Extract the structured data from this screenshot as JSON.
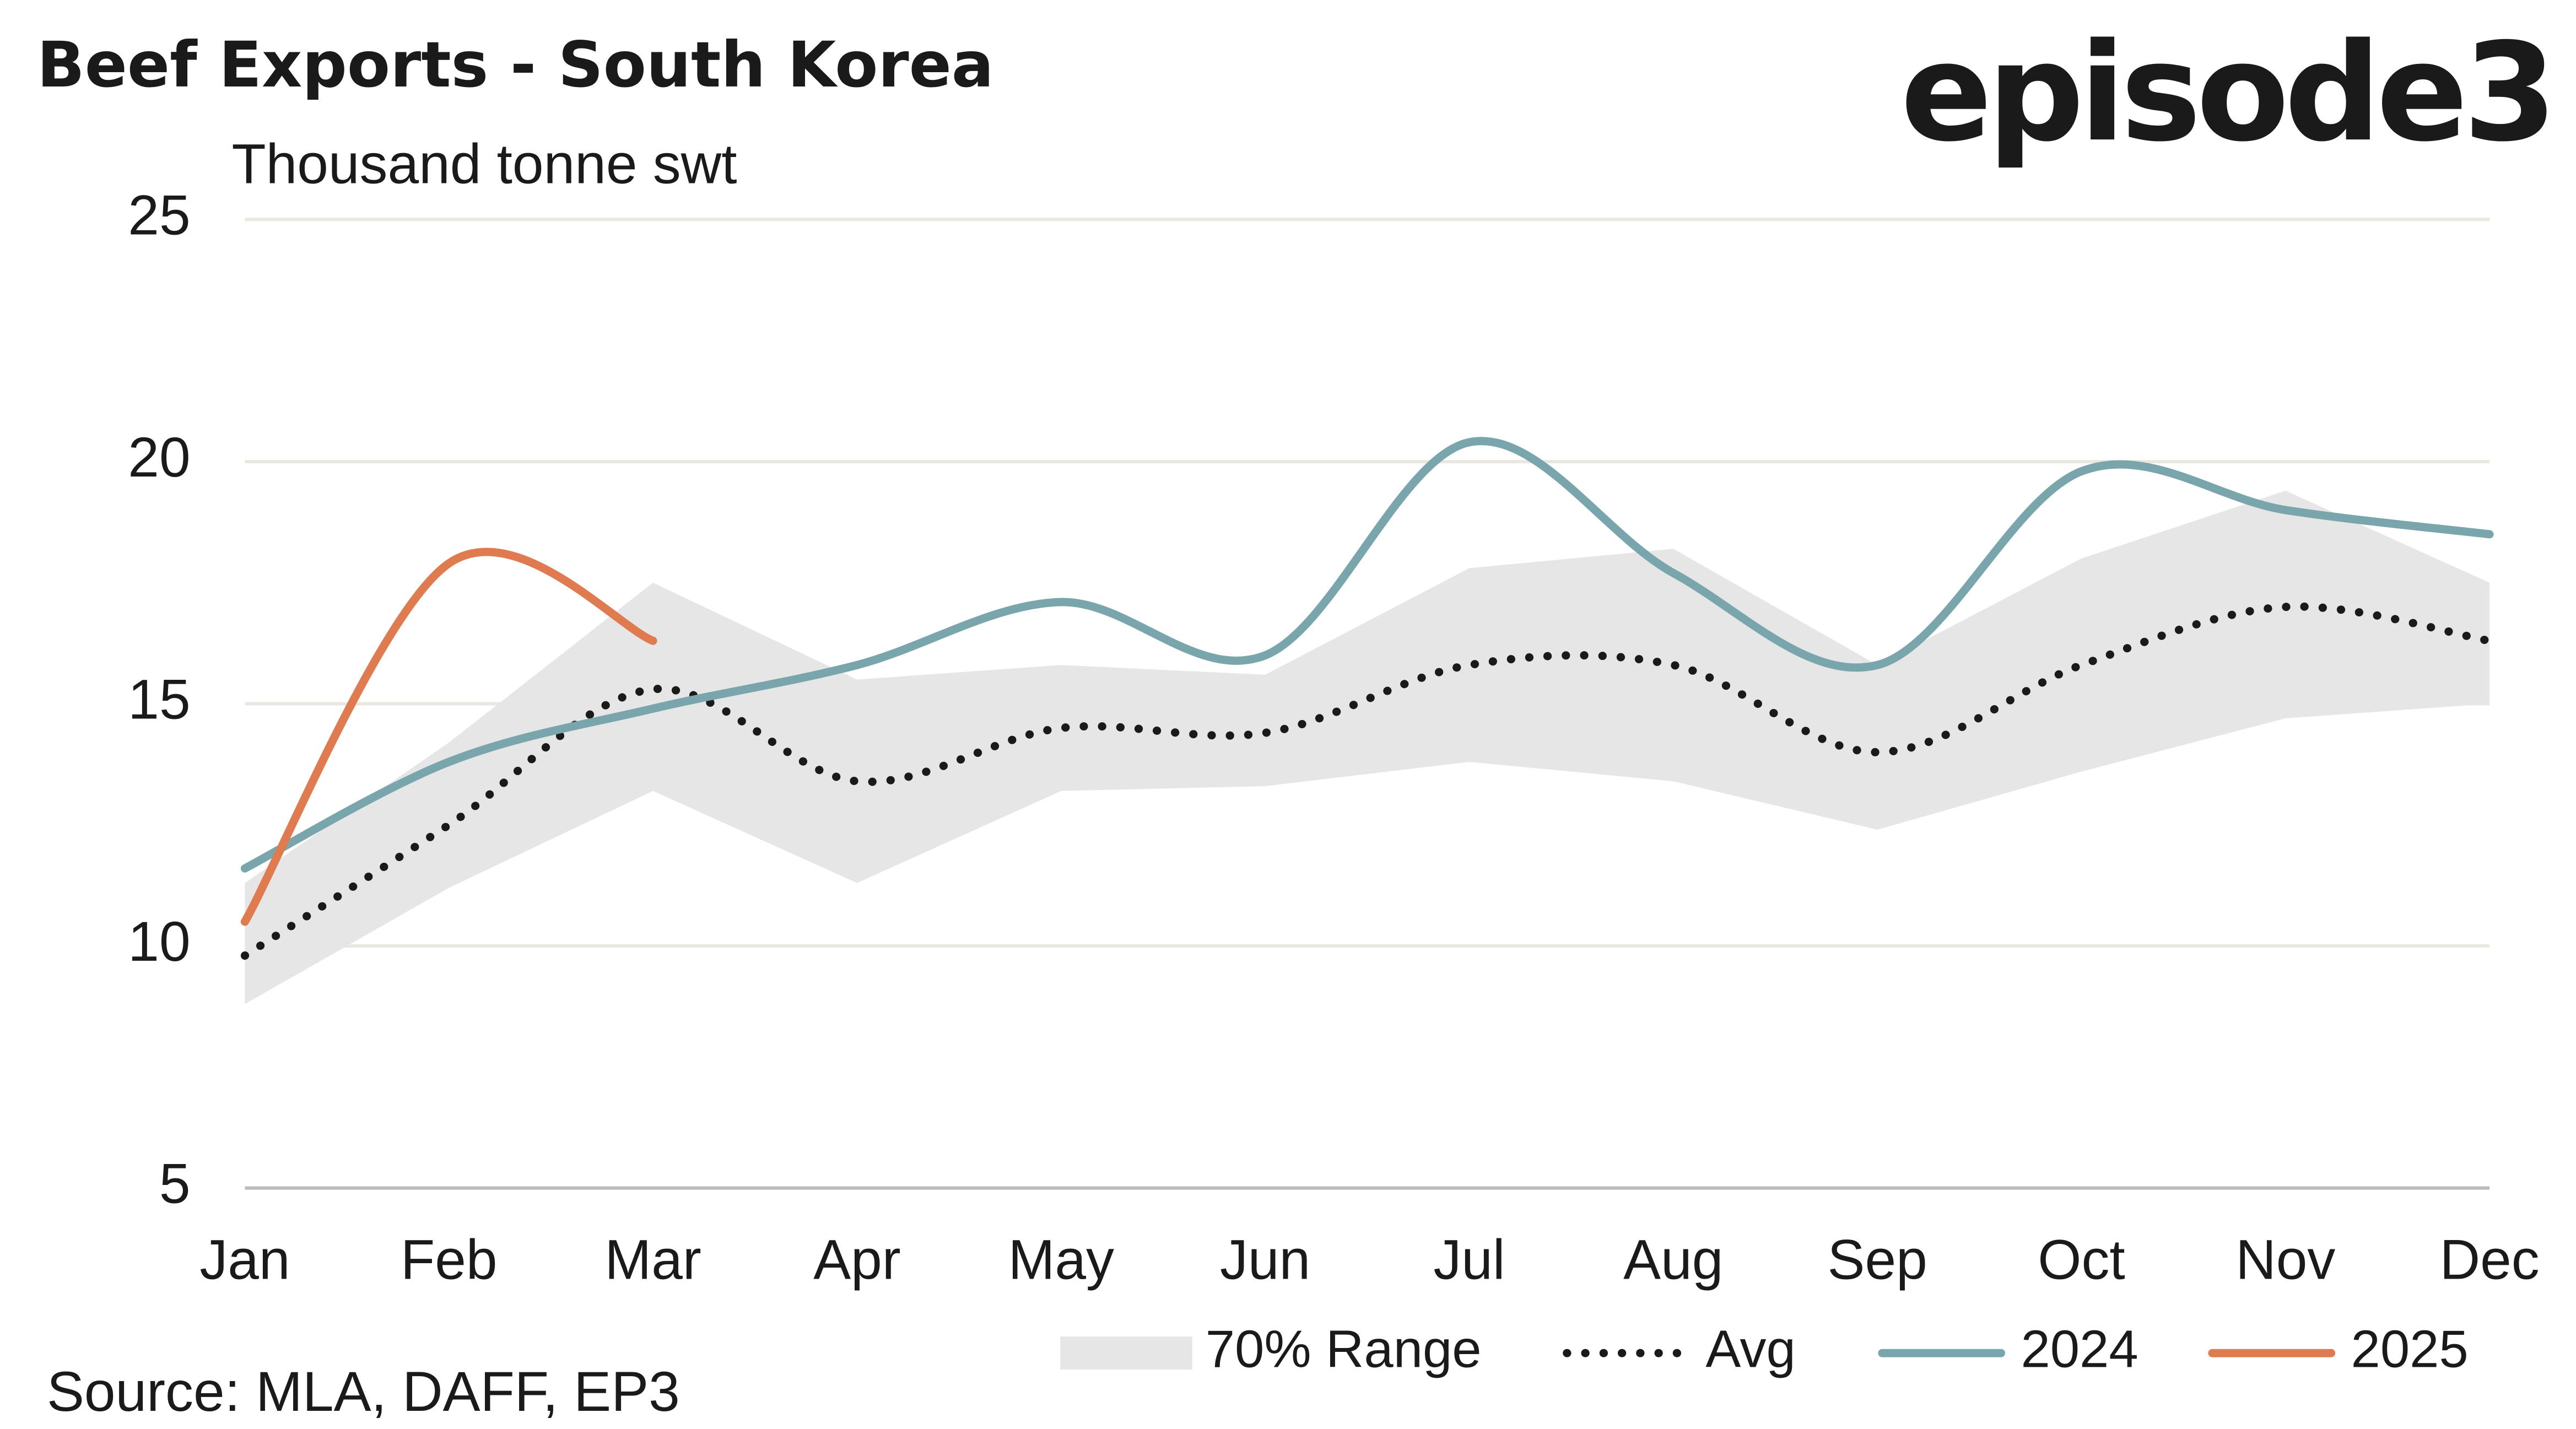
{
  "chart_data": {
    "type": "line",
    "title": "Beef Exports - South Korea",
    "subtitle": "Thousand tonne swt",
    "logo": "episode3",
    "source": "Source: MLA, DAFF, EP3",
    "categories": [
      "Jan",
      "Feb",
      "Mar",
      "Apr",
      "May",
      "Jun",
      "Jul",
      "Aug",
      "Sep",
      "Oct",
      "Nov",
      "Dec"
    ],
    "ylim": [
      5,
      25
    ],
    "yticks": [
      5,
      10,
      15,
      20,
      25
    ],
    "grid": true,
    "legend": "bottom",
    "series": [
      {
        "name": "70% Range",
        "type": "band",
        "color": "#e6e6e6",
        "lower": [
          8.8,
          11.2,
          13.2,
          11.3,
          13.2,
          13.3,
          13.8,
          13.4,
          12.4,
          13.6,
          14.7,
          15.0
        ],
        "upper": [
          11.3,
          14.2,
          17.5,
          15.5,
          15.8,
          15.6,
          17.8,
          18.2,
          15.8,
          18.0,
          19.4,
          17.5
        ]
      },
      {
        "name": "Avg",
        "type": "dotted",
        "color": "#1a1a1a",
        "values": [
          9.8,
          12.5,
          15.3,
          13.4,
          14.5,
          14.4,
          15.8,
          15.8,
          14.0,
          15.8,
          17.0,
          16.3
        ]
      },
      {
        "name": "2024",
        "type": "line",
        "color": "#79a6ad",
        "values": [
          11.6,
          13.8,
          14.9,
          15.8,
          17.1,
          16.0,
          20.4,
          17.7,
          15.8,
          19.8,
          19.0,
          18.5
        ]
      },
      {
        "name": "2025",
        "type": "line",
        "color": "#e07b50",
        "values": [
          10.5,
          17.9,
          16.3,
          null,
          null,
          null,
          null,
          null,
          null,
          null,
          null,
          null
        ]
      }
    ]
  }
}
